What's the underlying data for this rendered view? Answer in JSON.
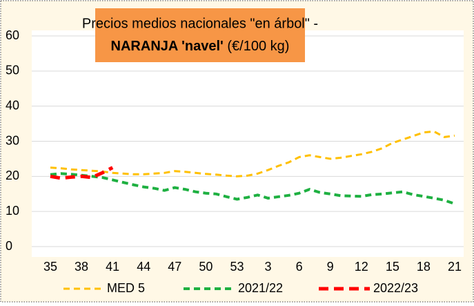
{
  "chart_data": {
    "type": "line",
    "title": {
      "line1": "Precios medios nacionales \"en árbol\" -",
      "line2_bold": "NARANJA 'navel'",
      "line2": "(€/100 kg)"
    },
    "categories": [
      35,
      null,
      null,
      38,
      null,
      null,
      41,
      null,
      null,
      44,
      null,
      null,
      47,
      null,
      null,
      50,
      null,
      null,
      53,
      null,
      null,
      3,
      null,
      null,
      6,
      null,
      null,
      9,
      null,
      null,
      12,
      null,
      null,
      15,
      null,
      null,
      18,
      null,
      null,
      21
    ],
    "series": [
      {
        "name": "MED 5",
        "color": "#ffc000",
        "values": [
          22.5,
          22.3,
          22,
          21.8,
          21.6,
          21.4,
          21,
          20.8,
          20.6,
          20.6,
          20.8,
          21,
          21.5,
          21.3,
          21,
          20.7,
          20.5,
          20.2,
          20,
          20.2,
          20.8,
          21.8,
          23,
          24,
          25.5,
          26,
          25.5,
          25,
          25.3,
          25.8,
          26.3,
          27,
          28,
          29.5,
          30.5,
          31.5,
          32.5,
          32.8,
          31.2,
          31.6
        ]
      },
      {
        "name": "2021/22",
        "color": "#1eb041",
        "values": [
          20.5,
          20.8,
          20.6,
          20.3,
          20,
          19.7,
          19,
          18.3,
          17.6,
          17,
          16.6,
          16,
          16.8,
          16.3,
          15.6,
          15.2,
          15,
          14.2,
          13.5,
          14,
          14.7,
          13.8,
          14.2,
          14.6,
          15.2,
          16.3,
          15.4,
          15,
          14.5,
          14.4,
          14.3,
          14.8,
          15,
          15.3,
          15.6,
          14.8,
          14.3,
          13.8,
          13.2,
          12.2
        ]
      },
      {
        "name": "2022/23",
        "color": "#ff0000",
        "values": [
          20,
          19.5,
          19.8,
          20,
          19.7,
          21,
          22.5,
          null,
          null,
          null,
          null,
          null,
          null,
          null,
          null,
          null,
          null,
          null,
          null,
          null,
          null,
          null,
          null,
          null,
          null,
          null,
          null,
          null,
          null,
          null,
          null,
          null,
          null,
          null,
          null,
          null,
          null,
          null,
          null,
          null
        ]
      }
    ],
    "ylim": [
      0,
      60
    ],
    "yticks": [
      0,
      10,
      20,
      30,
      40,
      50,
      60
    ],
    "grid": true,
    "legend": "bottom"
  }
}
